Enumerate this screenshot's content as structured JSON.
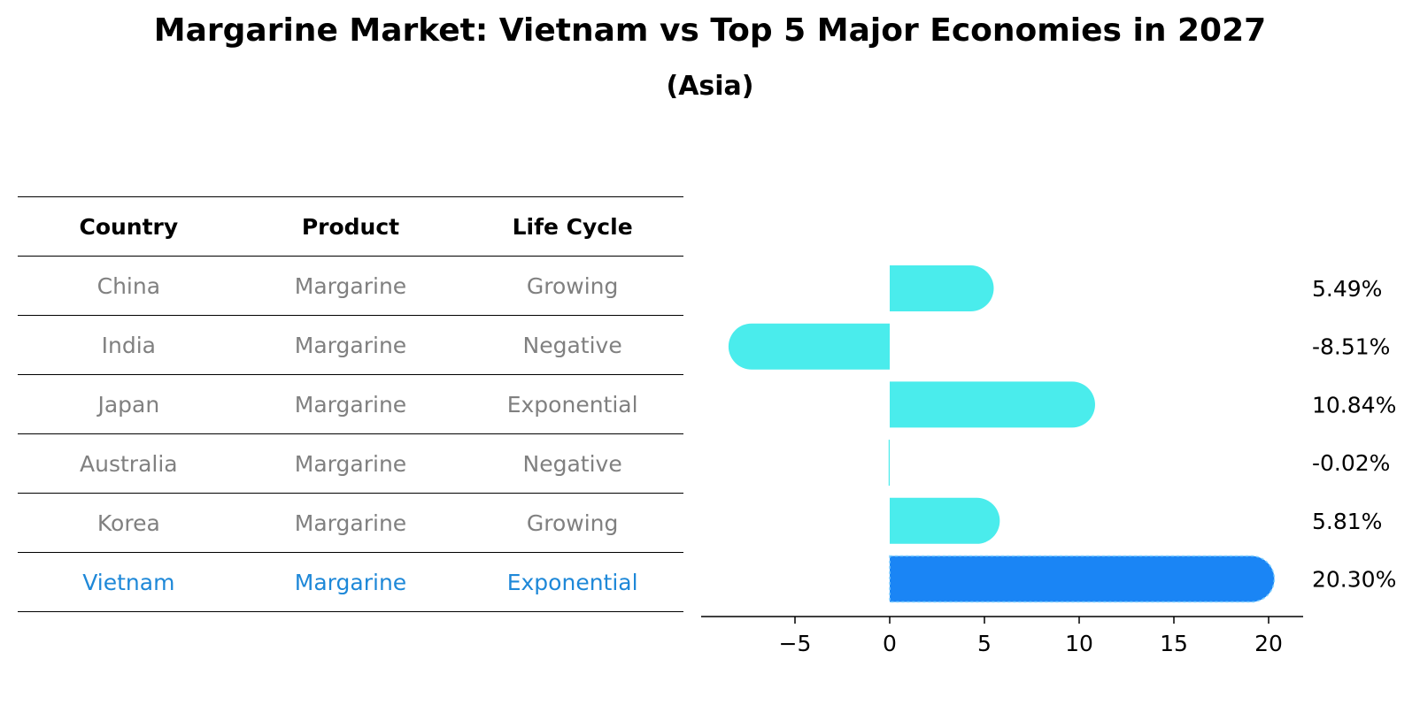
{
  "chart_data": {
    "type": "bar",
    "title": "Margarine Market: Vietnam vs Top 5 Major Economies in 2027",
    "subtitle": "(Asia)",
    "table": {
      "columns": [
        "Country",
        "Product",
        "Life Cycle"
      ],
      "rows": [
        [
          "China",
          "Margarine",
          "Growing"
        ],
        [
          "India",
          "Margarine",
          "Negative"
        ],
        [
          "Japan",
          "Margarine",
          "Exponential"
        ],
        [
          "Australia",
          "Margarine",
          "Negative"
        ],
        [
          "Korea",
          "Margarine",
          "Growing"
        ],
        [
          "Vietnam",
          "Margarine",
          "Exponential"
        ]
      ]
    },
    "categories": [
      "China",
      "India",
      "Japan",
      "Australia",
      "Korea",
      "Vietnam"
    ],
    "values": [
      5.49,
      -8.51,
      10.84,
      -0.02,
      5.81,
      20.3
    ],
    "value_labels": [
      "5.49%",
      "-8.51%",
      "10.84%",
      "-0.02%",
      "5.81%",
      "20.30%"
    ],
    "highlight": "Vietnam",
    "xlim": [
      -10,
      22
    ],
    "xticks": [
      -5,
      0,
      5,
      10,
      15,
      20
    ],
    "xtick_labels": [
      "−5",
      "0",
      "5",
      "10",
      "15",
      "20"
    ],
    "colors": {
      "bar": "#4aecec",
      "highlight": "#1a85f5",
      "highlight_text": "#1e88d8",
      "muted_text": "#808080"
    },
    "grid": false,
    "legend": "none"
  }
}
